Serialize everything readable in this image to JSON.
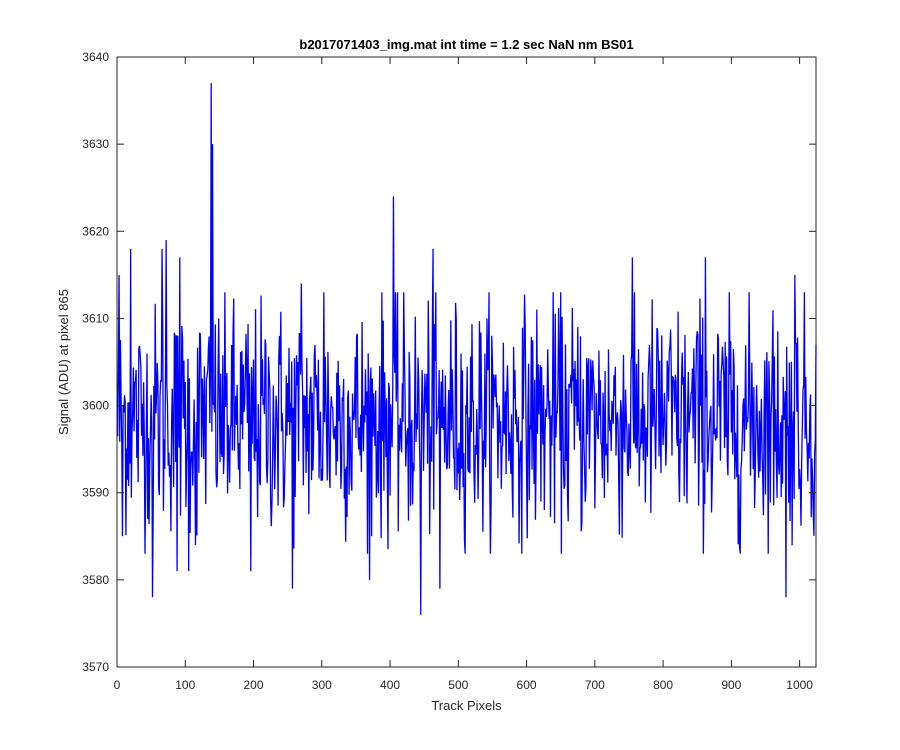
{
  "chart_data": {
    "type": "line",
    "title": "b2017071403_img.mat int time = 1.2 sec  NaN nm BS01",
    "xlabel": "Track Pixels",
    "ylabel": "Signal (ADU) at pixel 865",
    "xlim": [
      0,
      1024
    ],
    "ylim": [
      3570,
      3640
    ],
    "xticks": [
      0,
      100,
      200,
      300,
      400,
      500,
      600,
      700,
      800,
      900,
      1000
    ],
    "yticks": [
      3570,
      3580,
      3590,
      3600,
      3610,
      3620,
      3630,
      3640
    ],
    "grid": false,
    "series": [
      {
        "color": "#0000ff",
        "x_start": 1,
        "x_step": 1,
        "n_points": 1024,
        "baseline": 3598.5,
        "noise_std": 6.5,
        "notable_points": [
          {
            "x": 3,
            "y": 3615
          },
          {
            "x": 8,
            "y": 3585
          },
          {
            "x": 20,
            "y": 3618
          },
          {
            "x": 52,
            "y": 3578
          },
          {
            "x": 66,
            "y": 3618
          },
          {
            "x": 72,
            "y": 3619
          },
          {
            "x": 88,
            "y": 3581
          },
          {
            "x": 92,
            "y": 3617
          },
          {
            "x": 105,
            "y": 3581
          },
          {
            "x": 115,
            "y": 3584
          },
          {
            "x": 138,
            "y": 3637
          },
          {
            "x": 140,
            "y": 3630
          },
          {
            "x": 196,
            "y": 3581
          },
          {
            "x": 257,
            "y": 3579
          },
          {
            "x": 270,
            "y": 3614
          },
          {
            "x": 303,
            "y": 3613
          },
          {
            "x": 370,
            "y": 3580
          },
          {
            "x": 405,
            "y": 3624
          },
          {
            "x": 445,
            "y": 3576
          },
          {
            "x": 463,
            "y": 3618
          },
          {
            "x": 473,
            "y": 3579
          },
          {
            "x": 755,
            "y": 3617
          },
          {
            "x": 862,
            "y": 3617
          },
          {
            "x": 980,
            "y": 3578
          },
          {
            "x": 993,
            "y": 3615
          }
        ]
      }
    ]
  }
}
